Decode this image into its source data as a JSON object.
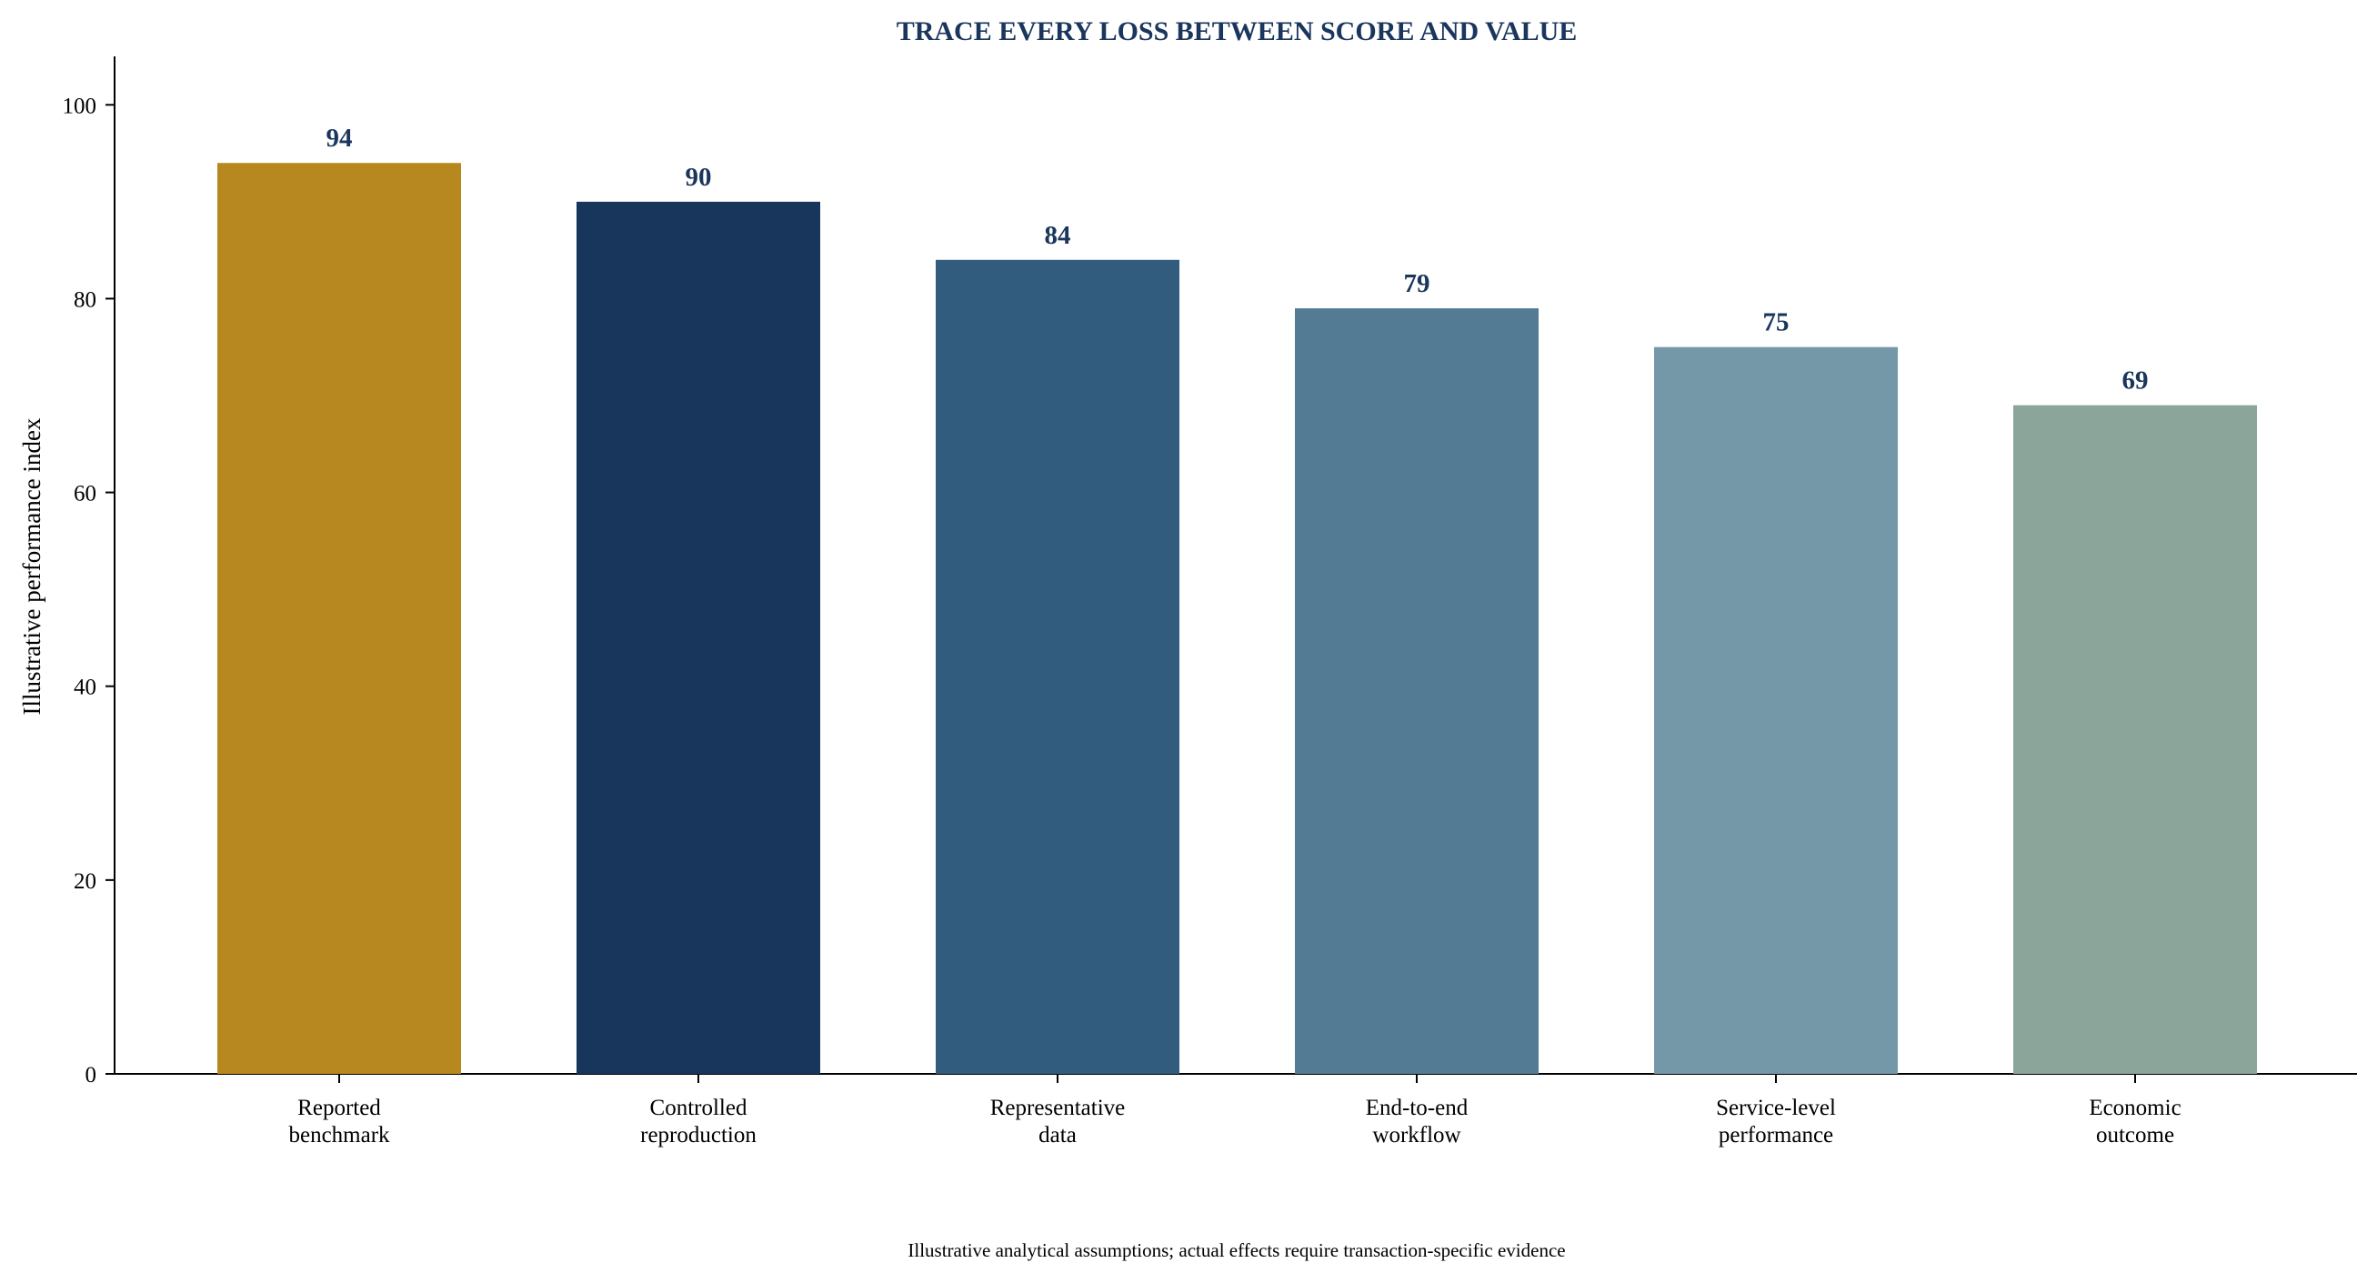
{
  "chart_data": {
    "type": "bar",
    "title": "TRACE EVERY LOSS BETWEEN SCORE AND VALUE",
    "xlabel": "",
    "ylabel": "Illustrative performance index",
    "categories": [
      [
        "Reported",
        "benchmark"
      ],
      [
        "Controlled",
        "reproduction"
      ],
      [
        "Representative",
        "data"
      ],
      [
        "End-to-end",
        "workflow"
      ],
      [
        "Service-level",
        "performance"
      ],
      [
        "Economic",
        "outcome"
      ]
    ],
    "values": [
      94,
      90,
      84,
      79,
      75,
      69
    ],
    "colors": [
      "#b78820",
      "#18365c",
      "#325c7d",
      "#537b94",
      "#7598a8",
      "#8ba59a"
    ],
    "ylim": [
      0,
      105
    ],
    "yticks": [
      0,
      20,
      40,
      60,
      80,
      100
    ],
    "grid": false,
    "legend": "none",
    "footnote": "Illustrative analytical assumptions; actual effects require transaction-specific evidence"
  }
}
